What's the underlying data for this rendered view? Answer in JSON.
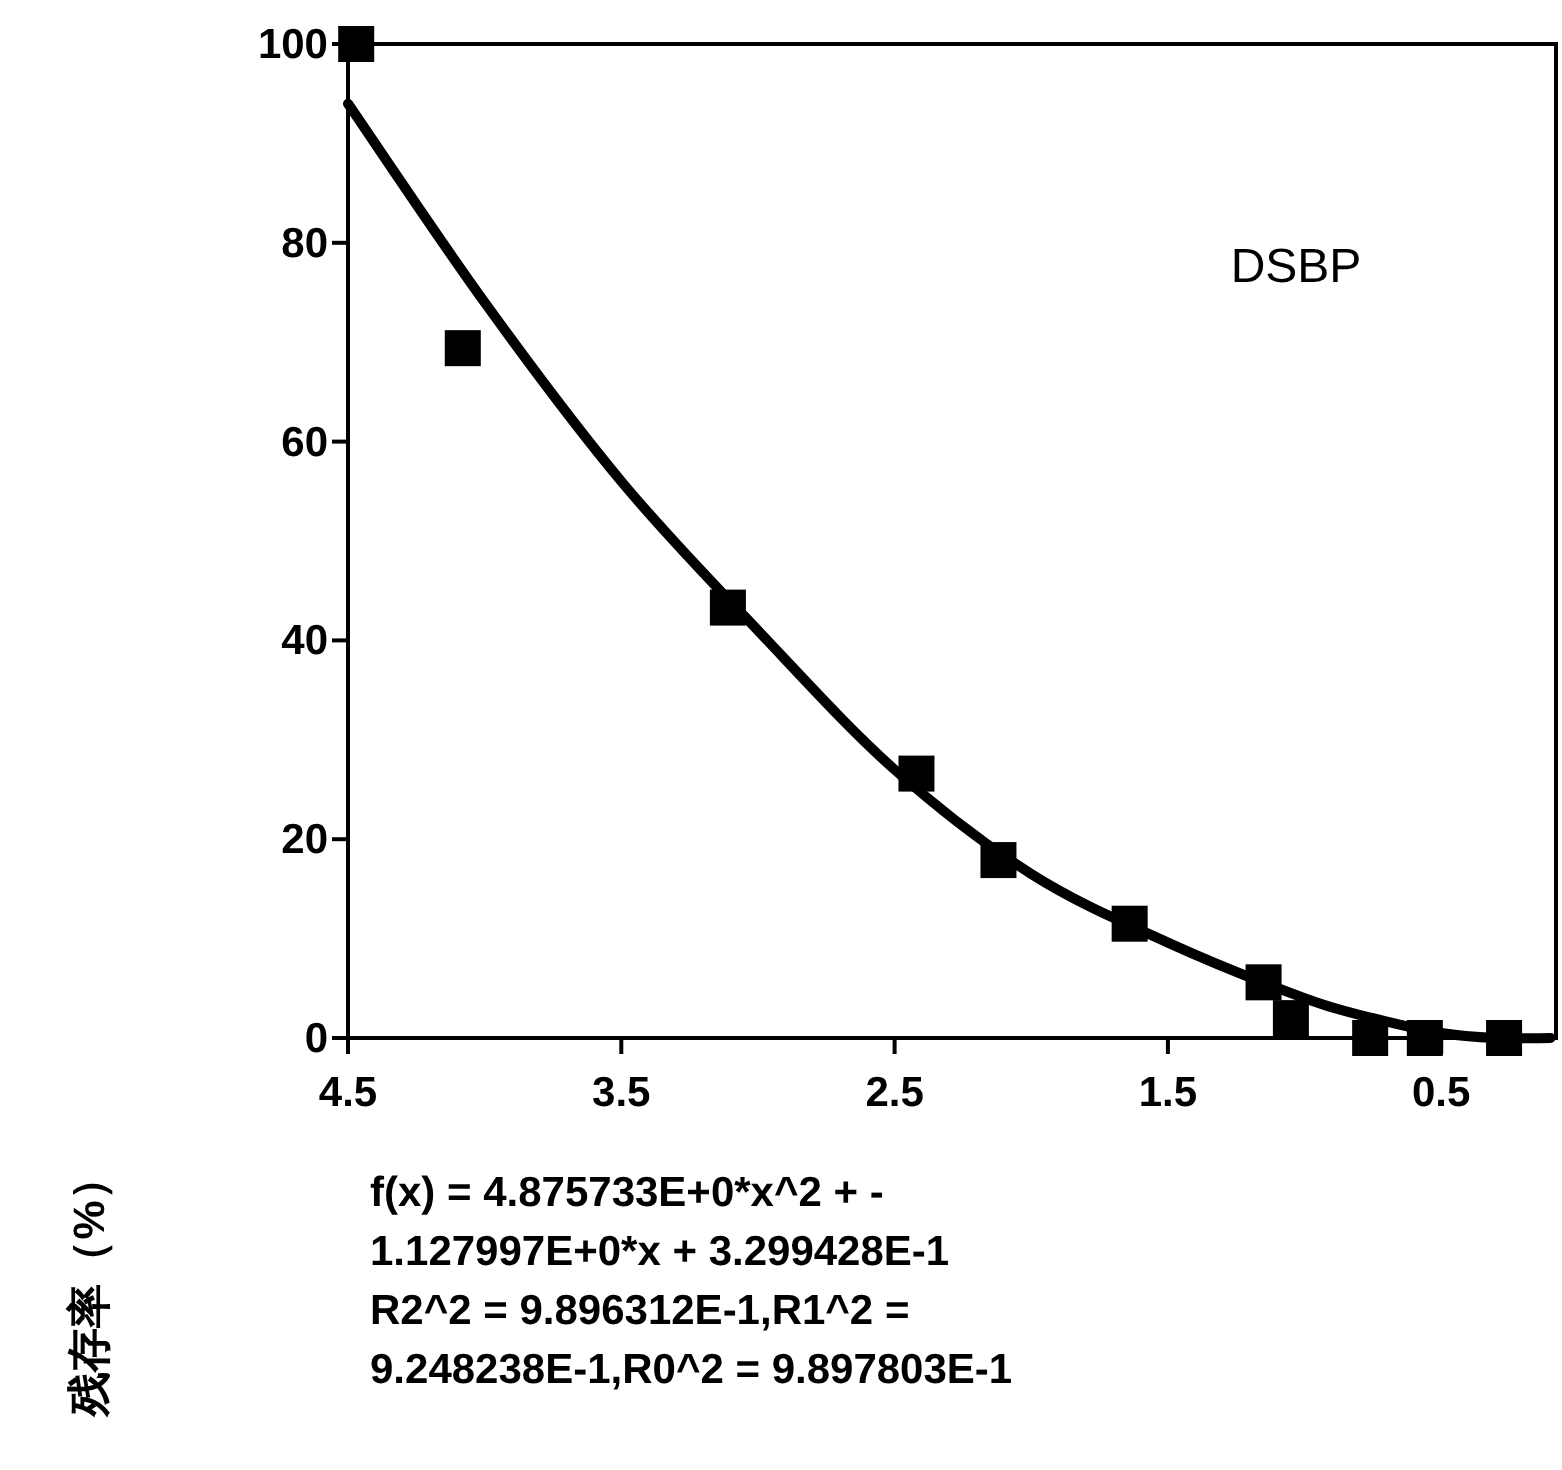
{
  "chart_data": {
    "type": "scatter",
    "ylabel": "残存率（%）",
    "annotations": [
      "DSBP",
      "f(x) = 4.875733E+0*x^2 + -\n1.127997E+0*x + 3.299428E-1\nR2^2 = 9.896312E-1,R1^2 =\n9.248238E-1,R0^2 = 9.897803E-1"
    ],
    "xlim": [
      4.5,
      0.08
    ],
    "ylim": [
      0,
      100
    ],
    "xticks": [
      4.5,
      3.5,
      2.5,
      1.5,
      0.5
    ],
    "yticks": [
      0,
      20,
      40,
      60,
      80,
      100
    ],
    "grid": false,
    "series": [
      {
        "marker": "square",
        "color": "#000000",
        "x": [
          4.47,
          4.08,
          3.11,
          2.42,
          2.12,
          1.64,
          1.15,
          1.05,
          0.76,
          0.56,
          0.27
        ],
        "values": [
          100,
          69.4,
          43.3,
          26.6,
          17.9,
          11.5,
          5.6,
          2,
          0,
          0,
          0
        ]
      },
      {
        "type": "line",
        "marker": "none",
        "color": "#000000",
        "x": [
          4.5,
          4.0,
          3.5,
          3.0,
          2.5,
          2.0,
          1.5,
          1.0,
          0.75,
          0.5,
          0.3,
          0.1
        ],
        "values": [
          94,
          74,
          56,
          41,
          27,
          16.5,
          9.6,
          4,
          2,
          0.5,
          0,
          0
        ]
      }
    ]
  }
}
